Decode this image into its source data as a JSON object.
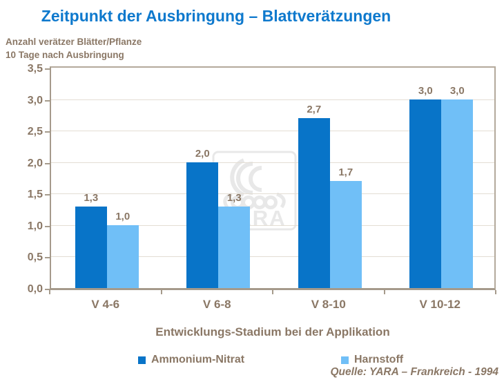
{
  "title": "Zeitpunkt der Ausbringung – Blattverätzungen",
  "subtitle": {
    "line1": "Anzahl verätzer Blätter/Pflanze",
    "line2": "10 Tage nach Ausbringung"
  },
  "watermark_text": "YARA",
  "source": "Quelle: YARA – Frankreich - 1994",
  "colors": {
    "title": "#0e79cd",
    "text": "#8a7765",
    "grid": "#e3ddd3",
    "axis": "#a59a8b",
    "frame": "#b3a99b",
    "watermark": "#e8e8e8",
    "series1": "#0874c8",
    "series2": "#70bff7"
  },
  "chart_data": {
    "type": "bar",
    "title": "Zeitpunkt der Ausbringung – Blattverätzungen",
    "categories": [
      "V 4-6",
      "V 6-8",
      "V 8-10",
      "V 10-12"
    ],
    "series": [
      {
        "name": "Ammonium-Nitrat",
        "color_key": "series1",
        "values": [
          1.3,
          2.0,
          2.7,
          3.0
        ]
      },
      {
        "name": "Harnstoff",
        "color_key": "series2",
        "values": [
          1.0,
          1.3,
          1.7,
          3.0
        ]
      }
    ],
    "xlabel": "Entwicklungs-Stadium bei der Applikation",
    "ylabel": "Anzahl verätzer Blätter/Pflanze, 10 Tage nach Ausbringung",
    "ylim": [
      0,
      3.5
    ],
    "ytick_step": 0.5,
    "grid": true,
    "legend_position": "bottom",
    "decimal_separator": ","
  }
}
